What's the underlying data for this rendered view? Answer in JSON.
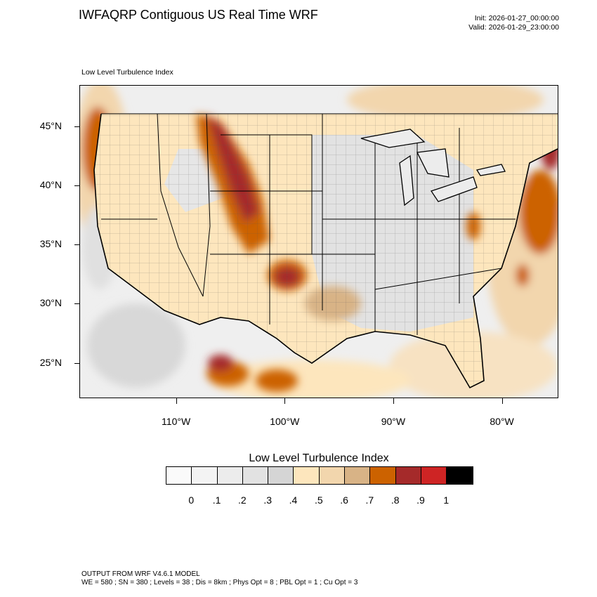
{
  "header": {
    "title": "IWFAQRP Contiguous US Real Time WRF",
    "init": "Init: 2026-01-27_00:00:00",
    "valid": "Valid: 2026-01-29_23:00:00",
    "subtitle": "Low Level Turbulence Index"
  },
  "map": {
    "lat_labels": [
      "45°N",
      "40°N",
      "35°N",
      "30°N",
      "25°N"
    ],
    "lon_labels": [
      "110°W",
      "100°W",
      "90°W",
      "80°W"
    ],
    "lat_values": [
      45,
      40,
      35,
      30,
      25
    ],
    "lon_values": [
      -110,
      -100,
      -90,
      -80
    ],
    "extent": {
      "lon_min": -118.9,
      "lon_max": -74.8,
      "lat_min": 22.0,
      "lat_max": 48.5
    }
  },
  "colorbar": {
    "title": "Low Level Turbulence Index",
    "colors": [
      "#fafafa",
      "#f3f3f3",
      "#ececec",
      "#e2e2e2",
      "#d5d5d5",
      "#fde6bd",
      "#f2d6ad",
      "#d8b386",
      "#cc6200",
      "#a52a2a",
      "#ce2424",
      "#000000"
    ],
    "labels": [
      "0",
      ".1",
      ".2",
      ".3",
      ".4",
      ".5",
      ".6",
      ".7",
      ".8",
      ".9",
      "1"
    ]
  },
  "footer": {
    "line1": "OUTPUT FROM WRF V4.6.1 MODEL",
    "line2": "WE = 580 ; SN = 380 ; Levels = 38 ; Dis = 8km ; Phys Opt = 8 ; PBL Opt = 1 ; Cu Opt = 3"
  }
}
